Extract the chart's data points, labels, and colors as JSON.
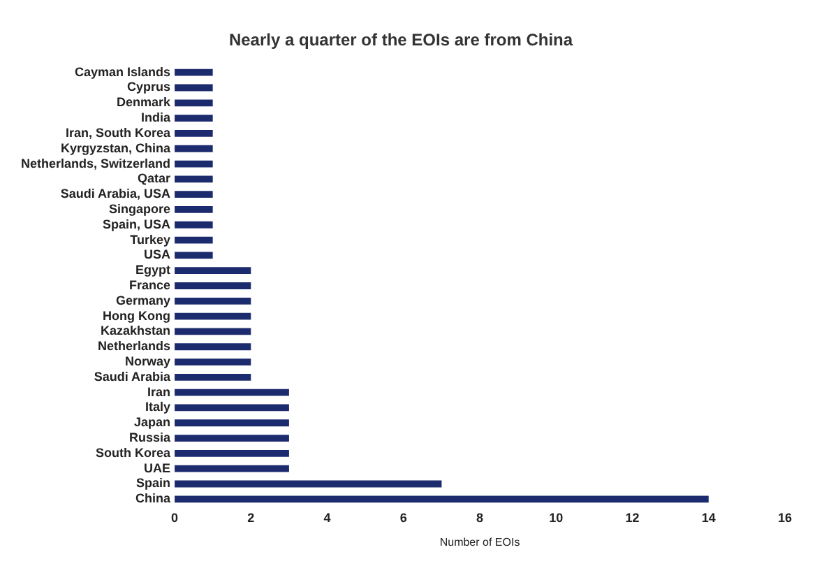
{
  "chart_data": {
    "type": "bar",
    "orientation": "horizontal",
    "title": "Nearly a quarter of the EOIs are from China",
    "xlabel": "Number of EOIs",
    "categories": [
      "Cayman Islands",
      "Cyprus",
      "Denmark",
      "India",
      "Iran, South Korea",
      "Kyrgyzstan, China",
      "Netherlands, Switzerland",
      "Qatar",
      "Saudi Arabia, USA",
      "Singapore",
      "Spain, USA",
      "Turkey",
      "USA",
      "Egypt",
      "France",
      "Germany",
      "Hong Kong",
      "Kazakhstan",
      "Netherlands",
      "Norway",
      "Saudi Arabia",
      "Iran",
      "Italy",
      "Japan",
      "Russia",
      "South Korea",
      "UAE",
      "Spain",
      "China"
    ],
    "values": [
      1,
      1,
      1,
      1,
      1,
      1,
      1,
      1,
      1,
      1,
      1,
      1,
      1,
      2,
      2,
      2,
      2,
      2,
      2,
      2,
      2,
      3,
      3,
      3,
      3,
      3,
      3,
      7,
      14
    ],
    "color": "#1c2a6e",
    "xlim": [
      0,
      16
    ],
    "xticks": [
      0,
      2,
      4,
      6,
      8,
      10,
      12,
      14,
      16
    ],
    "grid": false,
    "legend": false
  }
}
